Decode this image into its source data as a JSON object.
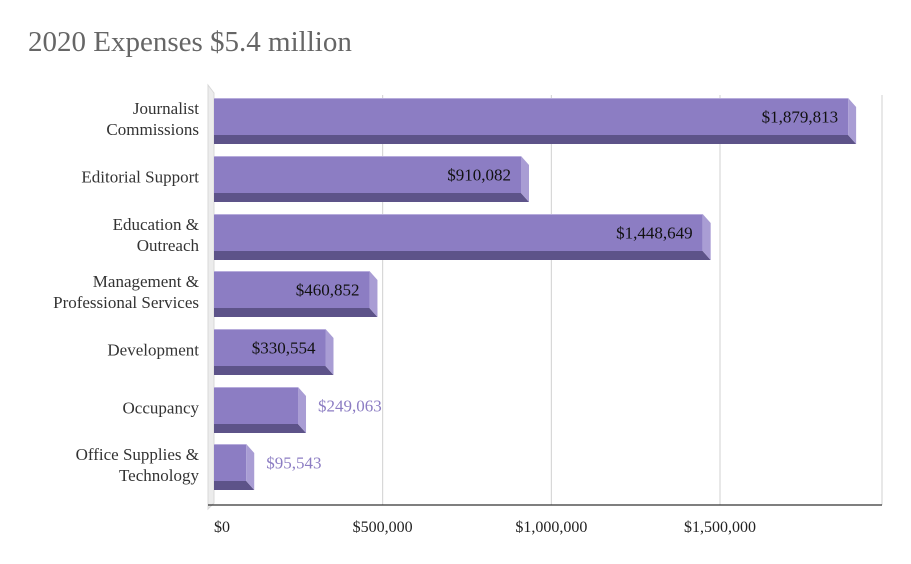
{
  "chart_data": {
    "type": "bar",
    "orientation": "horizontal",
    "title": "2020 Expenses $5.4 million",
    "categories": [
      [
        "Journalist",
        "Commissions"
      ],
      [
        "Editorial Support"
      ],
      [
        "Education &",
        "Outreach"
      ],
      [
        "Management &",
        "Professional Services"
      ],
      [
        "Development"
      ],
      [
        "Occupancy"
      ],
      [
        "Office Supplies &",
        "Technology"
      ]
    ],
    "values": [
      1879813,
      910082,
      1448649,
      460852,
      330554,
      249063,
      95543
    ],
    "value_labels": [
      "$1,879,813",
      "$910,082",
      "$1,448,649",
      "$460,852",
      "$330,554",
      "$249,063",
      "$95,543"
    ],
    "x_ticks": [
      0,
      500000,
      1000000,
      1500000
    ],
    "x_tick_labels": [
      "$0",
      "$500,000",
      "$1,000,000",
      "$1,500,000"
    ],
    "xlim": [
      0,
      2000000
    ],
    "grid": "vertical",
    "legend": "none",
    "colors": {
      "bar_front": "#8c7dc3",
      "bar_top": "#b7acdc",
      "bar_side": "#a99dd4",
      "bar_bottom": "#5d5389",
      "outside_label": "#8c7dc3",
      "inside_label": "#111111",
      "gridline": "#d0d0d0"
    }
  }
}
